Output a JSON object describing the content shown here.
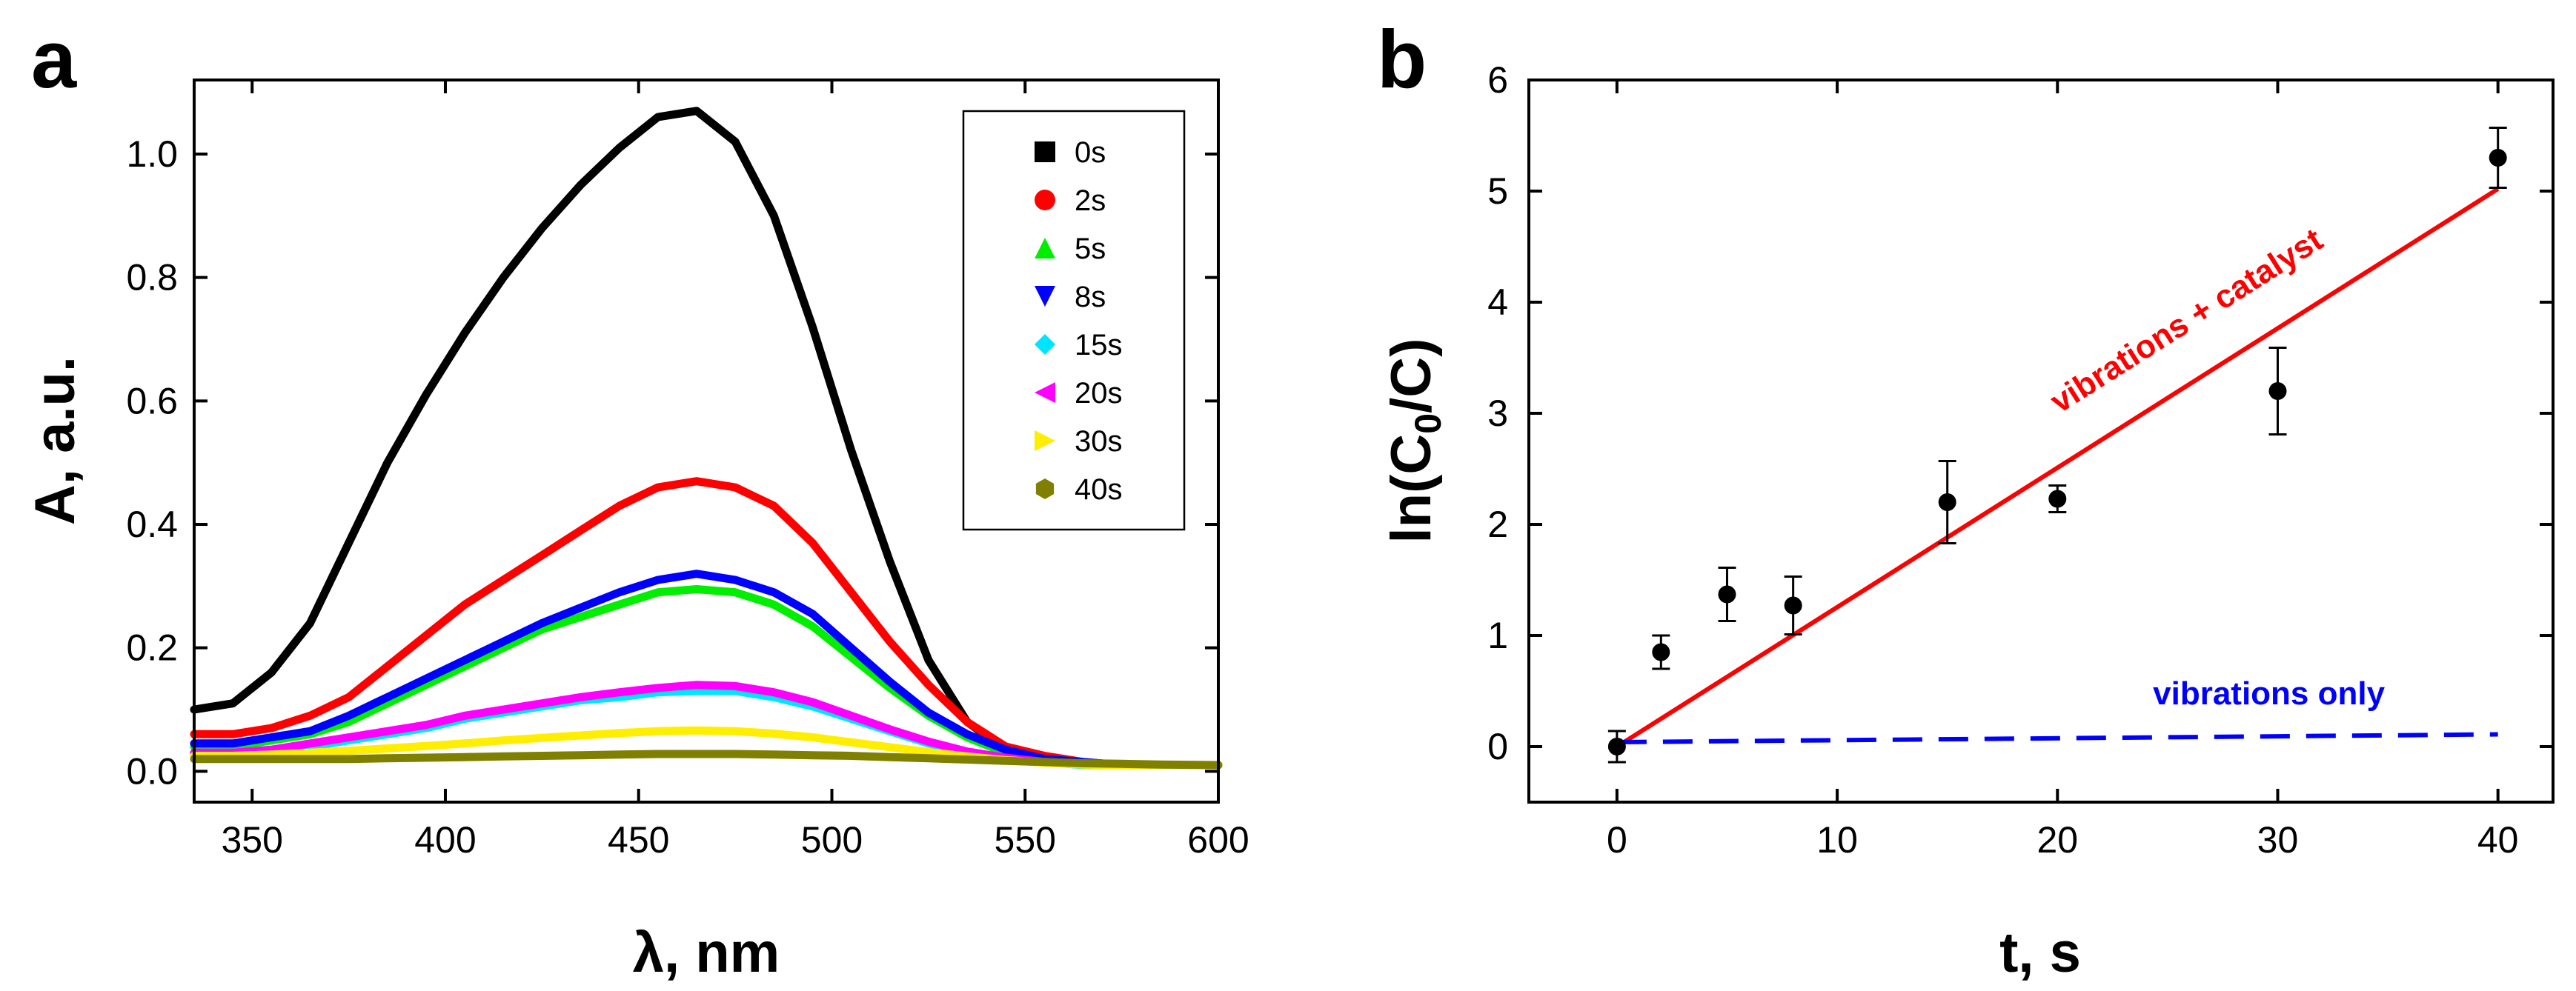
{
  "panels": {
    "a": "a",
    "b": "b"
  },
  "chart_data": [
    {
      "type": "line",
      "panel": "a",
      "xlabel": "λ, nm",
      "ylabel": "A, a.u.",
      "xlim": [
        335,
        600
      ],
      "ylim": [
        -0.05,
        1.12
      ],
      "xticks": [
        350,
        400,
        450,
        500,
        550,
        600
      ],
      "xtick_labels": [
        "350",
        "400",
        "450",
        "500",
        "550",
        "600"
      ],
      "yticks": [
        0.0,
        0.2,
        0.4,
        0.6,
        0.8,
        1.0
      ],
      "ytick_labels": [
        "0.0",
        "0.2",
        "0.4",
        "0.6",
        "0.8",
        "1.0"
      ],
      "legend_position": "top-right",
      "series": [
        {
          "name": "0s",
          "color": "#000000",
          "marker": "square",
          "x": [
            335,
            345,
            355,
            365,
            375,
            385,
            395,
            405,
            415,
            425,
            435,
            445,
            455,
            465,
            475,
            485,
            495,
            505,
            515,
            525,
            535,
            545,
            555,
            565,
            575,
            585,
            600
          ],
          "y": [
            0.1,
            0.11,
            0.16,
            0.24,
            0.37,
            0.5,
            0.61,
            0.71,
            0.8,
            0.88,
            0.95,
            1.01,
            1.06,
            1.07,
            1.02,
            0.9,
            0.72,
            0.52,
            0.34,
            0.18,
            0.08,
            0.035,
            0.02,
            0.012,
            0.01,
            0.01,
            0.01
          ]
        },
        {
          "name": "2s",
          "color": "#ff0000",
          "marker": "circle",
          "x": [
            335,
            345,
            355,
            365,
            375,
            385,
            395,
            405,
            415,
            425,
            435,
            445,
            455,
            465,
            475,
            485,
            495,
            505,
            515,
            525,
            535,
            545,
            555,
            565,
            575,
            585,
            600
          ],
          "y": [
            0.06,
            0.06,
            0.07,
            0.09,
            0.12,
            0.17,
            0.22,
            0.27,
            0.31,
            0.35,
            0.39,
            0.43,
            0.46,
            0.47,
            0.46,
            0.43,
            0.37,
            0.29,
            0.21,
            0.14,
            0.08,
            0.04,
            0.025,
            0.015,
            0.01,
            0.01,
            0.01
          ]
        },
        {
          "name": "5s",
          "color": "#00ee00",
          "marker": "triangle-up",
          "x": [
            335,
            345,
            355,
            365,
            375,
            385,
            395,
            405,
            415,
            425,
            435,
            445,
            455,
            465,
            475,
            485,
            495,
            505,
            515,
            525,
            535,
            545,
            555,
            565,
            575,
            585,
            600
          ],
          "y": [
            0.04,
            0.04,
            0.05,
            0.06,
            0.08,
            0.11,
            0.14,
            0.17,
            0.2,
            0.23,
            0.25,
            0.27,
            0.29,
            0.295,
            0.29,
            0.27,
            0.235,
            0.185,
            0.135,
            0.09,
            0.055,
            0.03,
            0.02,
            0.015,
            0.01,
            0.01,
            0.01
          ]
        },
        {
          "name": "8s",
          "color": "#0000ff",
          "marker": "triangle-down",
          "x": [
            335,
            345,
            355,
            365,
            375,
            385,
            395,
            405,
            415,
            425,
            435,
            445,
            455,
            465,
            475,
            485,
            495,
            505,
            515,
            525,
            535,
            545,
            555,
            565,
            575,
            585,
            600
          ],
          "y": [
            0.045,
            0.045,
            0.055,
            0.065,
            0.09,
            0.12,
            0.15,
            0.18,
            0.21,
            0.24,
            0.265,
            0.29,
            0.31,
            0.32,
            0.31,
            0.29,
            0.255,
            0.2,
            0.145,
            0.095,
            0.06,
            0.035,
            0.02,
            0.015,
            0.01,
            0.01,
            0.01
          ]
        },
        {
          "name": "15s",
          "color": "#00e5ff",
          "marker": "diamond",
          "x": [
            335,
            345,
            355,
            365,
            375,
            385,
            395,
            405,
            415,
            425,
            435,
            445,
            455,
            465,
            475,
            485,
            495,
            505,
            515,
            525,
            535,
            545,
            555,
            565,
            575,
            585,
            600
          ],
          "y": [
            0.03,
            0.03,
            0.035,
            0.04,
            0.05,
            0.06,
            0.07,
            0.085,
            0.095,
            0.105,
            0.115,
            0.12,
            0.128,
            0.13,
            0.13,
            0.12,
            0.105,
            0.085,
            0.065,
            0.045,
            0.03,
            0.02,
            0.015,
            0.01,
            0.01,
            0.01,
            0.01
          ]
        },
        {
          "name": "20s",
          "color": "#ff00ff",
          "marker": "triangle-left",
          "x": [
            335,
            345,
            355,
            365,
            375,
            385,
            395,
            405,
            415,
            425,
            435,
            445,
            455,
            465,
            475,
            485,
            495,
            505,
            515,
            525,
            535,
            545,
            555,
            565,
            575,
            585,
            600
          ],
          "y": [
            0.03,
            0.03,
            0.035,
            0.045,
            0.055,
            0.065,
            0.075,
            0.09,
            0.1,
            0.11,
            0.12,
            0.128,
            0.135,
            0.14,
            0.138,
            0.128,
            0.112,
            0.09,
            0.068,
            0.048,
            0.032,
            0.022,
            0.015,
            0.012,
            0.01,
            0.01,
            0.01
          ]
        },
        {
          "name": "30s",
          "color": "#ffee00",
          "marker": "triangle-right",
          "x": [
            335,
            345,
            355,
            365,
            375,
            385,
            395,
            405,
            415,
            425,
            435,
            445,
            455,
            465,
            475,
            485,
            495,
            505,
            515,
            525,
            535,
            545,
            555,
            565,
            575,
            585,
            600
          ],
          "y": [
            0.025,
            0.025,
            0.027,
            0.03,
            0.033,
            0.037,
            0.041,
            0.045,
            0.05,
            0.054,
            0.058,
            0.062,
            0.065,
            0.066,
            0.065,
            0.061,
            0.055,
            0.047,
            0.039,
            0.031,
            0.024,
            0.018,
            0.014,
            0.011,
            0.01,
            0.01,
            0.01
          ]
        },
        {
          "name": "40s",
          "color": "#808000",
          "marker": "hexagon",
          "x": [
            335,
            345,
            355,
            365,
            375,
            385,
            395,
            405,
            415,
            425,
            435,
            445,
            455,
            465,
            475,
            485,
            495,
            505,
            515,
            525,
            535,
            545,
            555,
            565,
            575,
            585,
            600
          ],
          "y": [
            0.02,
            0.02,
            0.02,
            0.02,
            0.02,
            0.021,
            0.022,
            0.023,
            0.024,
            0.025,
            0.026,
            0.027,
            0.028,
            0.028,
            0.028,
            0.027,
            0.026,
            0.025,
            0.023,
            0.021,
            0.019,
            0.017,
            0.015,
            0.013,
            0.012,
            0.011,
            0.01
          ]
        }
      ]
    },
    {
      "type": "scatter",
      "panel": "b",
      "xlabel": "t, s",
      "ylabel": "ln(C0/C)",
      "ylabel_parts": {
        "prefix": "ln(C",
        "subscript": "0",
        "suffix": "/C)"
      },
      "xlim": [
        -4,
        42.5
      ],
      "ylim": [
        -0.5,
        6
      ],
      "xticks": [
        0,
        10,
        20,
        30,
        40
      ],
      "xtick_labels": [
        "0",
        "10",
        "20",
        "30",
        "40"
      ],
      "yticks": [
        0,
        1,
        2,
        3,
        4,
        5,
        6
      ],
      "ytick_labels": [
        "0",
        "1",
        "2",
        "3",
        "4",
        "5",
        "6"
      ],
      "points": {
        "x": [
          0,
          2,
          5,
          8,
          15,
          20,
          30,
          40
        ],
        "y": [
          0.0,
          0.85,
          1.37,
          1.27,
          2.2,
          2.23,
          3.2,
          5.3
        ],
        "yerr": [
          0.14,
          0.15,
          0.24,
          0.26,
          0.37,
          0.12,
          0.39,
          0.27
        ],
        "color": "#000000"
      },
      "fit_lines": [
        {
          "name": "vibrations + catalyst",
          "color": "#ff0000",
          "style": "solid",
          "x": [
            0,
            40
          ],
          "y": [
            0.0,
            5.02
          ]
        },
        {
          "name": "vibrations only",
          "color": "#0000ff",
          "style": "dashed",
          "x": [
            0,
            40
          ],
          "y": [
            0.04,
            0.11
          ]
        }
      ],
      "annotations": [
        {
          "text": "vibrations + catalyst",
          "color": "#ff0000"
        },
        {
          "text": "vibrations only",
          "color": "#0000ff"
        }
      ]
    }
  ]
}
